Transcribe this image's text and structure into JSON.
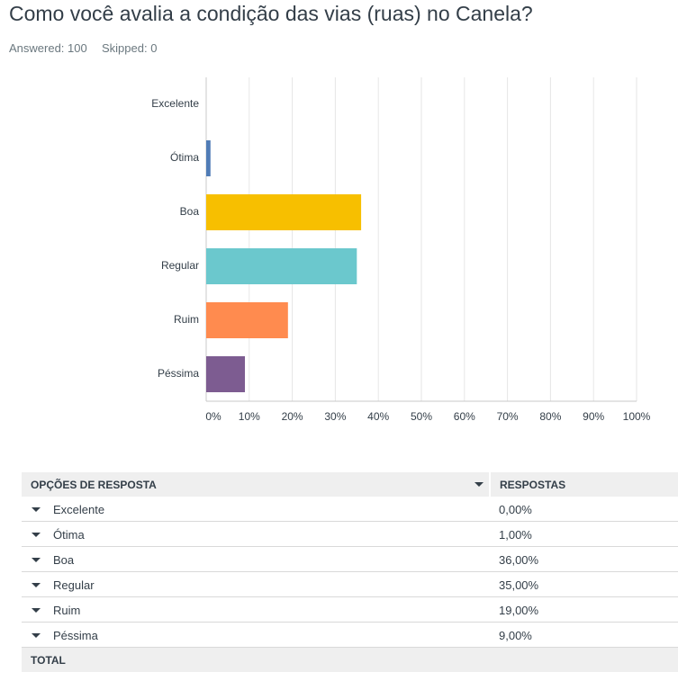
{
  "header": {
    "title": "Como você avalia a condição das vias (ruas) no Canela?",
    "answered": "Answered: 100",
    "skipped": "Skipped: 0"
  },
  "chart_data": {
    "type": "bar",
    "orientation": "horizontal",
    "categories": [
      "Excelente",
      "Ótima",
      "Boa",
      "Regular",
      "Ruim",
      "Péssima"
    ],
    "series": [
      {
        "values": [
          0,
          1,
          36,
          35,
          19,
          9
        ],
        "colors": [
          "#00bf6f",
          "#507cb6",
          "#f7bf00",
          "#6bc8cd",
          "#ff8b4f",
          "#7d5c91"
        ]
      }
    ],
    "xlim": [
      0,
      100
    ],
    "xticks": [
      {
        "value": 0,
        "label": "0%"
      },
      {
        "value": 10,
        "label": "10%"
      },
      {
        "value": 20,
        "label": "20%"
      },
      {
        "value": 30,
        "label": "30%"
      },
      {
        "value": 40,
        "label": "40%"
      },
      {
        "value": 50,
        "label": "50%"
      },
      {
        "value": 60,
        "label": "60%"
      },
      {
        "value": 70,
        "label": "70%"
      },
      {
        "value": 80,
        "label": "80%"
      },
      {
        "value": 90,
        "label": "90%"
      },
      {
        "value": 100,
        "label": "100%"
      }
    ],
    "grid": true
  },
  "table": {
    "headers": [
      "OPÇÕES DE RESPOSTA",
      "RESPOSTAS"
    ],
    "rows": [
      [
        "Excelente",
        "0,00%"
      ],
      [
        "Ótima",
        "1,00%"
      ],
      [
        "Boa",
        "36,00%"
      ],
      [
        "Regular",
        "35,00%"
      ],
      [
        "Ruim",
        "19,00%"
      ],
      [
        "Péssima",
        "9,00%"
      ]
    ],
    "total": "TOTAL"
  }
}
